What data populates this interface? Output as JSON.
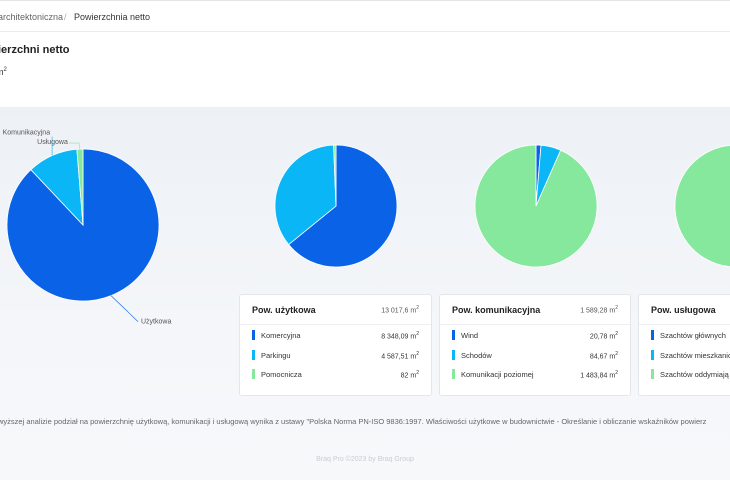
{
  "breadcrumb": {
    "items": [
      "architektoniczna",
      "/",
      "Powierzchnia netto"
    ]
  },
  "page": {
    "title": "ierzchni netto",
    "unit": "m",
    "unit_exp": "2"
  },
  "colors": {
    "dark_blue": "#0a63e6",
    "light_blue": "#0ab6f5",
    "green": "#86e89c"
  },
  "chart_data": [
    {
      "type": "pie",
      "title": "",
      "slices": [
        {
          "label": "Użytkowa",
          "value": 13017.6,
          "color": "#0a63e6"
        },
        {
          "label": "Komunikacyjna",
          "value": 1589.28,
          "color": "#0ab6f5"
        },
        {
          "label": "Usługowa",
          "value": 190,
          "color": "#86e89c"
        }
      ]
    },
    {
      "type": "pie",
      "title": "Pow. użytkowa",
      "slices": [
        {
          "label": "Komercyjna",
          "value": 8348.09,
          "color": "#0a63e6"
        },
        {
          "label": "Parkingu",
          "value": 4587.51,
          "color": "#0ab6f5"
        },
        {
          "label": "Pomocnicza",
          "value": 82,
          "color": "#86e89c"
        }
      ]
    },
    {
      "type": "pie",
      "title": "Pow. komunikacyjna",
      "slices": [
        {
          "label": "Wind",
          "value": 20.78,
          "color": "#0a63e6"
        },
        {
          "label": "Schodów",
          "value": 84.67,
          "color": "#0ab6f5"
        },
        {
          "label": "Komunikacji poziomej",
          "value": 1483.84,
          "color": "#86e89c"
        }
      ]
    },
    {
      "type": "pie",
      "title": "Pow. usługowa",
      "slices": [
        {
          "label": "Szachtów głównych",
          "value": 5,
          "color": "#0a63e6"
        },
        {
          "label": "Szachtów mieszkanio",
          "value": 40,
          "color": "#0ab6f5"
        },
        {
          "label": "Szachtów oddymiają",
          "value": 55,
          "color": "#86e89c"
        }
      ]
    }
  ],
  "cards": [
    {
      "title": "Pow. użytkowa",
      "total": "13 017,6 m",
      "rows": [
        {
          "label": "Komercyjna",
          "value": "8 348,09 m"
        },
        {
          "label": "Parkingu",
          "value": "4 587,51 m"
        },
        {
          "label": "Pomocnicza",
          "value": "82 m"
        }
      ]
    },
    {
      "title": "Pow. komunikacyjna",
      "total": "1 589,28 m",
      "rows": [
        {
          "label": "Wind",
          "value": "20,78 m"
        },
        {
          "label": "Schodów",
          "value": "84,67 m"
        },
        {
          "label": "Komunikacji poziomej",
          "value": "1 483,84 m"
        }
      ]
    },
    {
      "title": "Pow. usługowa",
      "total": "",
      "rows": [
        {
          "label": "Szachtów głównych",
          "value": ""
        },
        {
          "label": "Szachtów mieszkanio",
          "value": ""
        },
        {
          "label": "Szachtów oddymiają",
          "value": ""
        }
      ]
    }
  ],
  "sup2": "2",
  "footnote": "wyższej analizie podział na powierzchnię użytkową, komunikacji i usługową wynika z ustawy \"Polska Norma PN-ISO 9836:1997. Właściwości użytkowe w budownictwie - Określanie i obliczanie wskaźników powierz",
  "footer": "Braq Pro ©2023 by Braq Group"
}
